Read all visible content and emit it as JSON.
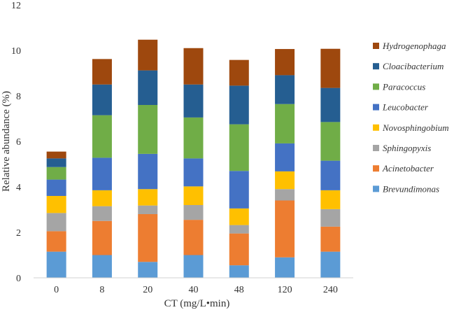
{
  "chart_data": {
    "type": "bar",
    "stacked": true,
    "title": "",
    "xlabel": "CT (mg/L•min)",
    "ylabel": "Relative abundance (%)",
    "ylim": [
      0,
      12
    ],
    "yticks": [
      0,
      2,
      4,
      6,
      8,
      10,
      12
    ],
    "categories": [
      "0",
      "8",
      "20",
      "40",
      "48",
      "120",
      "240"
    ],
    "grid": false,
    "legend_position": "right",
    "series": [
      {
        "name": "Brevundimonas",
        "color": "#5b9bd5",
        "values": [
          1.15,
          1.0,
          0.7,
          1.0,
          0.55,
          0.9,
          1.15
        ]
      },
      {
        "name": "Acinetobacter",
        "color": "#ed7d31",
        "values": [
          0.9,
          1.5,
          2.1,
          1.55,
          1.4,
          2.5,
          1.1
        ]
      },
      {
        "name": "Sphingopyxis",
        "color": "#a5a5a5",
        "values": [
          0.8,
          0.65,
          0.38,
          0.65,
          0.37,
          0.5,
          0.77
        ]
      },
      {
        "name": "Novosphingobium",
        "color": "#ffc000",
        "values": [
          0.75,
          0.7,
          0.72,
          0.82,
          0.73,
          0.78,
          0.83
        ]
      },
      {
        "name": "Leucobacter",
        "color": "#4472c4",
        "values": [
          0.72,
          1.43,
          1.55,
          1.23,
          1.65,
          1.23,
          1.3
        ]
      },
      {
        "name": "Paracoccus",
        "color": "#70ad47",
        "values": [
          0.55,
          1.87,
          2.15,
          1.8,
          2.05,
          1.73,
          1.7
        ]
      },
      {
        "name": "Cloacibacterium",
        "color": "#255e91",
        "values": [
          0.38,
          1.35,
          1.52,
          1.45,
          1.7,
          1.27,
          1.5
        ]
      },
      {
        "name": "Hydrogenophaga",
        "color": "#9e480e",
        "values": [
          0.3,
          1.12,
          1.35,
          1.6,
          1.13,
          1.15,
          1.72
        ]
      }
    ]
  }
}
